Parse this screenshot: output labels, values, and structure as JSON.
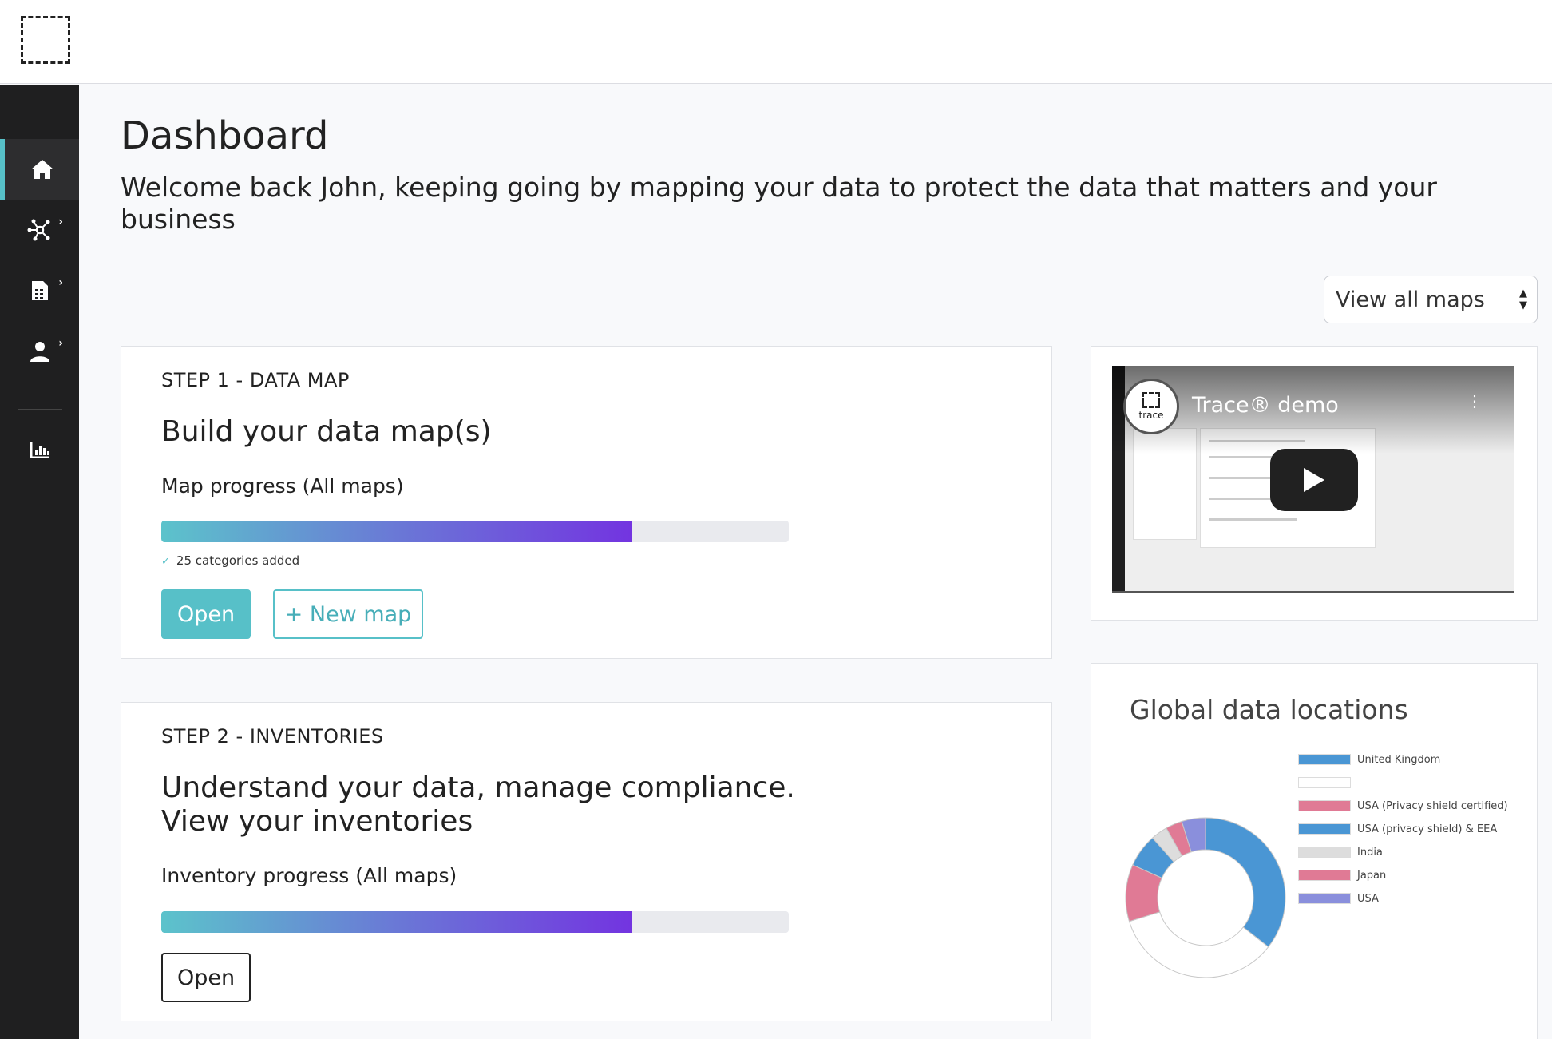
{
  "header": {
    "logo": "trace-logo"
  },
  "sidebar": {
    "items": [
      {
        "name": "home",
        "icon": "home-icon",
        "active": true
      },
      {
        "name": "data-map",
        "icon": "network-icon",
        "has_submenu": true
      },
      {
        "name": "inventories",
        "icon": "document-table-icon",
        "has_submenu": true
      },
      {
        "name": "users",
        "icon": "user-icon",
        "has_submenu": true
      },
      {
        "name": "reports",
        "icon": "bar-chart-icon"
      }
    ],
    "chevron": "›"
  },
  "main": {
    "title": "Dashboard",
    "subtitle": "Welcome back John, keeping going by mapping your data to protect the data that matters and your business",
    "maps_filter": {
      "selected": "View all maps",
      "arrows": "▲▼"
    }
  },
  "step1": {
    "label": "STEP 1 - DATA MAP",
    "heading": "Build your data map(s)",
    "progress_label": "Map progress (All maps)",
    "progress": 0.75,
    "note_check": "✓",
    "note": "25 categories added",
    "open_label": "Open",
    "new_map_label": "+ New map"
  },
  "step2": {
    "label": "STEP 2 - INVENTORIES",
    "heading_line1": "Understand your data, manage compliance.",
    "heading_line2": "View your inventories",
    "progress_label": "Inventory progress (All maps)",
    "progress": 0.75,
    "open_label": "Open"
  },
  "video": {
    "title": "Trace® demo",
    "channel": "trace",
    "kebab": "⋮"
  },
  "chart_data": {
    "type": "pie",
    "title": "Global data locations",
    "donut": true,
    "categories": [
      "United Kingdom",
      "",
      "USA (Privacy shield certified)",
      "USA (privacy shield) & EEA",
      "India",
      "Japan",
      "USA"
    ],
    "values": [
      37,
      36,
      12,
      7,
      3.5,
      3.5,
      5
    ],
    "colors": [
      "#4a96d4",
      "#ffffff",
      "#e07a95",
      "#4a96d4",
      "#dddddd",
      "#e07a95",
      "#8a8fdc"
    ],
    "legend_position": "right"
  },
  "colors": {
    "accent": "#57c0c8",
    "sidebar": "#1f1f20",
    "gradient_end": "#7334e0"
  }
}
